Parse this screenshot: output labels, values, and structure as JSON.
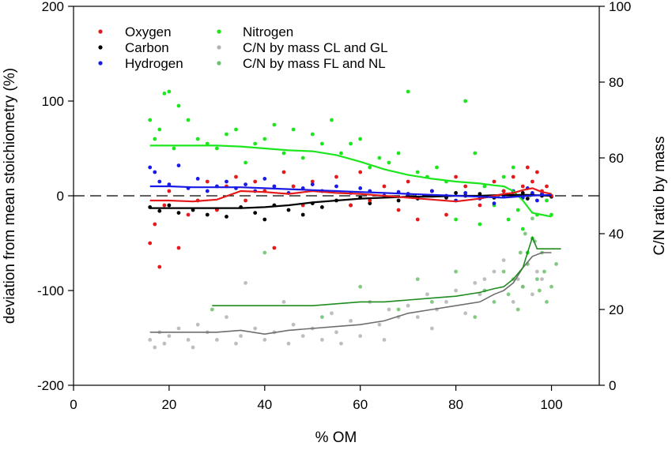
{
  "chart_data": {
    "type": "scatter",
    "xlabel": "% OM",
    "ylabel_left": "deviation from mean stoichiometry (%)",
    "ylabel_right": "C/N ratio by mass",
    "xlim": [
      0,
      110
    ],
    "ylim_left": [
      -200,
      200
    ],
    "ylim_right": [
      0,
      100
    ],
    "x_ticks": [
      "0",
      "20",
      "40",
      "60",
      "80",
      "100"
    ],
    "y_left_ticks": [
      "-200",
      "-100",
      "0",
      "100",
      "200"
    ],
    "y_right_ticks": [
      "0",
      "20",
      "40",
      "60",
      "80",
      "100"
    ],
    "reference_line": {
      "axis": "left",
      "y": 0,
      "style": "dashed"
    },
    "legend_position": "top-left",
    "series": [
      {
        "name": "Oxygen",
        "axis": "left",
        "color": "#e41a1c",
        "scatter_x": [
          16,
          17,
          18,
          19,
          20,
          22,
          24,
          26,
          28,
          30,
          32,
          34,
          36,
          38,
          40,
          42,
          44,
          46,
          48,
          50,
          52,
          55,
          58,
          60,
          62,
          65,
          68,
          70,
          72,
          75,
          78,
          80,
          82,
          85,
          88,
          90,
          92,
          94,
          95,
          96,
          97,
          98,
          99,
          100
        ],
        "scatter_y": [
          -50,
          -30,
          -75,
          -10,
          5,
          -55,
          -20,
          -5,
          15,
          -15,
          10,
          20,
          -5,
          15,
          5,
          -55,
          25,
          10,
          -10,
          15,
          5,
          20,
          -10,
          25,
          -5,
          10,
          -15,
          15,
          -25,
          5,
          -20,
          20,
          10,
          -10,
          15,
          5,
          20,
          10,
          30,
          15,
          25,
          5,
          10,
          0
        ],
        "trend_x": [
          16,
          20,
          25,
          30,
          35,
          40,
          45,
          50,
          55,
          60,
          65,
          70,
          75,
          80,
          85,
          88,
          90,
          92,
          94,
          96,
          98,
          100
        ],
        "trend_y": [
          -5,
          -5,
          -6,
          -4,
          5,
          4,
          2,
          5,
          3,
          2,
          0,
          -2,
          -4,
          -6,
          -3,
          0,
          2,
          3,
          6,
          8,
          4,
          2
        ]
      },
      {
        "name": "Carbon",
        "axis": "left",
        "color": "#000000",
        "scatter_x": [
          16,
          18,
          20,
          22,
          25,
          28,
          30,
          32,
          35,
          38,
          40,
          42,
          45,
          48,
          50,
          52,
          55,
          58,
          60,
          62,
          65,
          68,
          70,
          72,
          75,
          78,
          80,
          82,
          85,
          88,
          90,
          92,
          94,
          95,
          96,
          98,
          100
        ],
        "scatter_y": [
          -12,
          -16,
          -10,
          -18,
          -15,
          -20,
          -14,
          -22,
          -12,
          -18,
          -25,
          -10,
          -15,
          -20,
          -8,
          -12,
          -5,
          -10,
          -2,
          -8,
          0,
          -5,
          2,
          -3,
          5,
          -2,
          3,
          0,
          2,
          -2,
          5,
          0,
          3,
          -3,
          2,
          0,
          -1
        ],
        "trend_x": [
          16,
          20,
          25,
          30,
          35,
          40,
          45,
          50,
          55,
          60,
          65,
          70,
          75,
          80,
          85,
          90,
          95,
          100
        ],
        "trend_y": [
          -13,
          -13,
          -13,
          -13,
          -13,
          -12,
          -10,
          -7,
          -5,
          -3,
          -2,
          -1,
          -1,
          0,
          0,
          1,
          1,
          0
        ]
      },
      {
        "name": "Hydrogen",
        "axis": "left",
        "color": "#1a1ae6",
        "scatter_x": [
          16,
          17,
          18,
          20,
          22,
          24,
          26,
          28,
          30,
          32,
          34,
          36,
          38,
          40,
          42,
          45,
          48,
          50,
          52,
          55,
          58,
          60,
          62,
          65,
          68,
          70,
          72,
          75,
          78,
          80,
          82,
          85,
          88,
          90,
          92,
          94,
          95,
          96,
          97,
          98
        ],
        "scatter_y": [
          30,
          25,
          15,
          12,
          32,
          8,
          18,
          5,
          10,
          15,
          8,
          12,
          5,
          18,
          10,
          3,
          8,
          12,
          5,
          10,
          3,
          8,
          5,
          0,
          4,
          2,
          -2,
          5,
          0,
          -5,
          3,
          -3,
          -8,
          0,
          5,
          -2,
          8,
          3,
          -5,
          2
        ],
        "trend_x": [
          16,
          20,
          25,
          30,
          35,
          40,
          45,
          50,
          55,
          60,
          65,
          70,
          75,
          80,
          85,
          90,
          95,
          100
        ],
        "trend_y": [
          10,
          10,
          9,
          9,
          9,
          8,
          7,
          6,
          5,
          4,
          3,
          2,
          1,
          0,
          -1,
          -2,
          0,
          1
        ]
      },
      {
        "name": "Nitrogen",
        "axis": "left",
        "color": "#1ee61e",
        "scatter_x": [
          16,
          17,
          18,
          19,
          20,
          21,
          22,
          24,
          26,
          28,
          30,
          32,
          34,
          36,
          38,
          40,
          42,
          44,
          46,
          48,
          50,
          52,
          54,
          56,
          58,
          60,
          62,
          64,
          66,
          68,
          70,
          72,
          74,
          76,
          78,
          80,
          82,
          84,
          85,
          86,
          88,
          90,
          91,
          92,
          93,
          94,
          95,
          96,
          97,
          98,
          99,
          100
        ],
        "scatter_y": [
          80,
          60,
          70,
          108,
          110,
          50,
          95,
          80,
          60,
          55,
          50,
          65,
          70,
          35,
          55,
          60,
          75,
          45,
          70,
          40,
          65,
          55,
          80,
          45,
          55,
          60,
          30,
          40,
          35,
          45,
          110,
          25,
          20,
          30,
          15,
          -25,
          100,
          45,
          -30,
          10,
          -10,
          20,
          -25,
          30,
          -15,
          -35,
          -60,
          -45,
          -20,
          0,
          -5,
          -20
        ],
        "trend_x": [
          16,
          20,
          25,
          30,
          35,
          40,
          45,
          50,
          55,
          60,
          65,
          70,
          75,
          80,
          85,
          88,
          90,
          92,
          94,
          96,
          98,
          100
        ],
        "trend_y": [
          53,
          53,
          53,
          53,
          52,
          50,
          48,
          47,
          43,
          36,
          28,
          22,
          18,
          15,
          13,
          11,
          10,
          5,
          -5,
          -18,
          -20,
          -22
        ]
      },
      {
        "name": "C/N by mass CL and GL",
        "axis": "right",
        "color": "#b3b3b3",
        "scatter_x": [
          16,
          17,
          18,
          19,
          20,
          22,
          24,
          25,
          26,
          28,
          30,
          32,
          34,
          35,
          36,
          38,
          40,
          42,
          44,
          45,
          46,
          48,
          50,
          52,
          54,
          55,
          56,
          58,
          60,
          62,
          64,
          65,
          66,
          68,
          70,
          72,
          74,
          75,
          76,
          78,
          80,
          82,
          84,
          85,
          86,
          88,
          90,
          92,
          93,
          94,
          95,
          96,
          97,
          98
        ],
        "scatter_y": [
          12,
          10,
          14,
          11,
          13,
          15,
          12,
          10,
          16,
          14,
          12,
          18,
          11,
          13,
          27,
          15,
          12,
          14,
          22,
          11,
          16,
          13,
          15,
          12,
          19,
          14,
          11,
          17,
          13,
          22,
          16,
          12,
          20,
          18,
          21,
          18,
          24,
          15,
          20,
          22,
          25,
          19,
          27,
          24,
          28,
          30,
          33,
          22,
          28,
          26,
          32,
          24,
          30,
          28
        ],
        "trend_x": [
          16,
          20,
          25,
          30,
          35,
          40,
          45,
          50,
          55,
          60,
          65,
          70,
          75,
          80,
          85,
          88,
          90,
          92,
          94,
          96,
          98,
          100
        ],
        "trend_y": [
          14,
          14,
          14,
          14,
          14.5,
          13.5,
          14.5,
          15,
          15.5,
          16,
          17,
          19,
          20,
          21,
          22,
          24,
          25,
          27,
          31,
          34,
          35,
          35
        ]
      },
      {
        "name": "C/N by mass FL and NL",
        "axis": "right",
        "color": "#6cbf6c",
        "scatter_x": [
          29,
          40,
          52,
          60,
          68,
          72,
          75,
          80,
          84,
          86,
          88,
          90,
          91,
          92,
          93,
          93.5,
          94,
          94.5,
          95,
          95.5,
          96,
          96.5,
          97,
          97.5,
          98,
          98.5,
          99,
          100,
          101
        ],
        "scatter_y": [
          20,
          35,
          18,
          26,
          20,
          28,
          22,
          30,
          18,
          25,
          22,
          30,
          24,
          28,
          20,
          35,
          26,
          40,
          32,
          50,
          44,
          38,
          28,
          25,
          35,
          30,
          22,
          26,
          32
        ],
        "trend_x": [
          29,
          35,
          40,
          45,
          50,
          55,
          60,
          65,
          70,
          75,
          80,
          85,
          88,
          90,
          92,
          94,
          95,
          96,
          97,
          98,
          100,
          102
        ],
        "trend_y": [
          21,
          21,
          21,
          21,
          21,
          21.5,
          22,
          22,
          22.5,
          23,
          23.5,
          24.5,
          25.5,
          26,
          28,
          31,
          35,
          39,
          36,
          36,
          36,
          36
        ]
      }
    ]
  }
}
